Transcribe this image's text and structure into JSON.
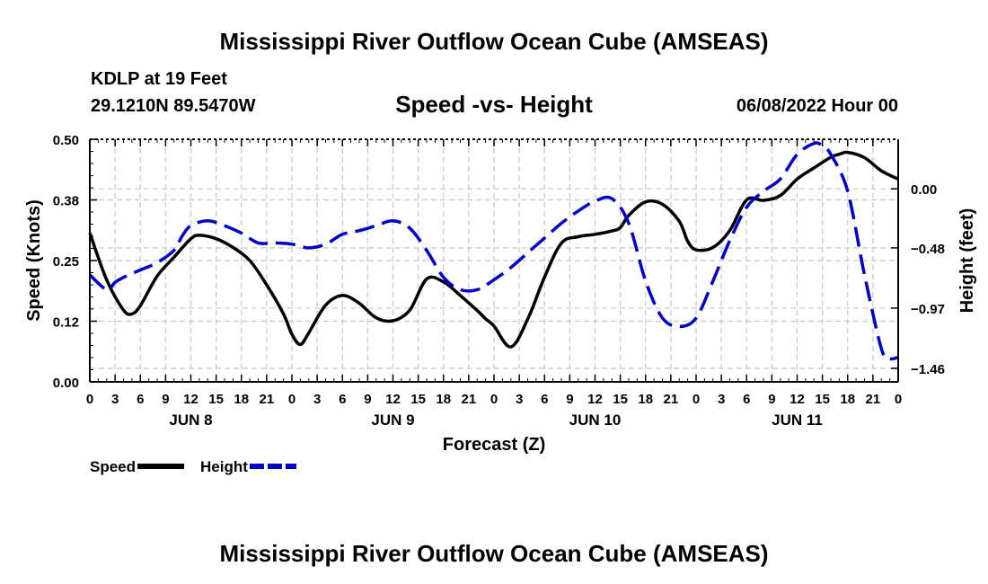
{
  "page": {
    "title": "Mississippi River Outflow Ocean Cube (AMSEAS)",
    "footer_title": "Mississippi River Outflow Ocean Cube (AMSEAS)",
    "station": "KDLP at 19 Feet",
    "coords": "29.1210N  89.5470W",
    "subtitle": "Speed -vs- Height",
    "datetime": "06/08/2022 Hour 00"
  },
  "chart_data": {
    "type": "line",
    "title": "Speed -vs- Height",
    "xlabel": "Forecast (Z)",
    "ylabel_left": "Speed (Knots)",
    "ylabel_right": "Height (feet)",
    "x_hours_range": [
      0,
      96
    ],
    "x_tick_labels": [
      "0",
      "3",
      "6",
      "9",
      "12",
      "15",
      "18",
      "21",
      "0",
      "3",
      "6",
      "9",
      "12",
      "15",
      "18",
      "21",
      "0",
      "3",
      "6",
      "9",
      "12",
      "15",
      "18",
      "21",
      "0",
      "3",
      "6",
      "9",
      "12",
      "15",
      "18",
      "21",
      "0"
    ],
    "day_labels": [
      {
        "label": "JUN 8",
        "hour": 12
      },
      {
        "label": "JUN 9",
        "hour": 36
      },
      {
        "label": "JUN 10",
        "hour": 60
      },
      {
        "label": "JUN 11",
        "hour": 84
      }
    ],
    "left_axis": {
      "ylim": [
        0.0,
        0.5
      ],
      "tick_values": [
        0.0,
        0.125,
        0.25,
        0.375,
        0.5
      ],
      "tick_labels": [
        "0.00",
        "0.12",
        "0.25",
        "0.38",
        "0.50"
      ]
    },
    "right_axis": {
      "ylim": [
        -1.5698,
        0.4033
      ],
      "tick_values": [
        -1.46,
        -0.97,
        -0.48,
        0.0
      ],
      "tick_labels": [
        "−1.46",
        "−0.97",
        "−0.48",
        "0.00"
      ]
    },
    "grid": true,
    "legend_position": "bottom-left",
    "series": [
      {
        "name": "Speed",
        "axis": "left",
        "color": "#000000",
        "style": "solid",
        "x_hours": [
          0,
          2,
          4,
          5,
          6,
          8,
          10,
          12,
          13,
          15,
          17,
          19,
          21,
          23,
          24,
          25,
          26,
          28,
          30,
          32,
          34,
          36,
          38,
          40,
          42,
          44,
          46,
          47,
          48,
          50,
          52,
          54,
          56,
          58,
          60,
          62,
          63,
          64,
          66,
          68,
          70,
          71,
          72,
          74,
          76,
          78,
          80,
          82,
          84,
          86,
          88,
          89,
          90,
          92,
          94,
          96
        ],
        "values": [
          0.307,
          0.21,
          0.148,
          0.14,
          0.157,
          0.218,
          0.257,
          0.295,
          0.302,
          0.295,
          0.277,
          0.25,
          0.2,
          0.14,
          0.098,
          0.077,
          0.101,
          0.158,
          0.178,
          0.162,
          0.132,
          0.126,
          0.148,
          0.212,
          0.206,
          0.178,
          0.147,
          0.13,
          0.115,
          0.072,
          0.129,
          0.216,
          0.286,
          0.299,
          0.304,
          0.311,
          0.318,
          0.343,
          0.371,
          0.366,
          0.331,
          0.29,
          0.272,
          0.277,
          0.312,
          0.375,
          0.374,
          0.384,
          0.418,
          0.441,
          0.463,
          0.469,
          0.473,
          0.462,
          0.435,
          0.418
        ]
      },
      {
        "name": "Height",
        "axis": "right",
        "color": "#0000cc",
        "style": "dashed",
        "x_hours": [
          0,
          2,
          3,
          4,
          6,
          8,
          10,
          11,
          12,
          14,
          16,
          18,
          20,
          22,
          24,
          26,
          28,
          30,
          32,
          34,
          36,
          38,
          40,
          42,
          44,
          46,
          48,
          50,
          52,
          54,
          56,
          58,
          60,
          62,
          64,
          66,
          68,
          70,
          72,
          74,
          76,
          78,
          80,
          82,
          84,
          86,
          87,
          88,
          90,
          92,
          94,
          95,
          96
        ],
        "values": [
          -0.7,
          -0.82,
          -0.76,
          -0.72,
          -0.66,
          -0.6,
          -0.5,
          -0.38,
          -0.3,
          -0.26,
          -0.3,
          -0.36,
          -0.44,
          -0.44,
          -0.45,
          -0.48,
          -0.45,
          -0.37,
          -0.34,
          -0.3,
          -0.26,
          -0.32,
          -0.5,
          -0.72,
          -0.82,
          -0.82,
          -0.74,
          -0.64,
          -0.52,
          -0.4,
          -0.28,
          -0.18,
          -0.1,
          -0.08,
          -0.28,
          -0.75,
          -1.05,
          -1.12,
          -1.05,
          -0.75,
          -0.42,
          -0.15,
          -0.02,
          0.08,
          0.28,
          0.37,
          0.35,
          0.28,
          -0.02,
          -0.7,
          -1.3,
          -1.38,
          -1.37
        ]
      }
    ],
    "legend": [
      {
        "name": "Speed",
        "color": "#000000",
        "style": "solid"
      },
      {
        "name": "Height",
        "color": "#0000cc",
        "style": "dashed"
      }
    ]
  }
}
